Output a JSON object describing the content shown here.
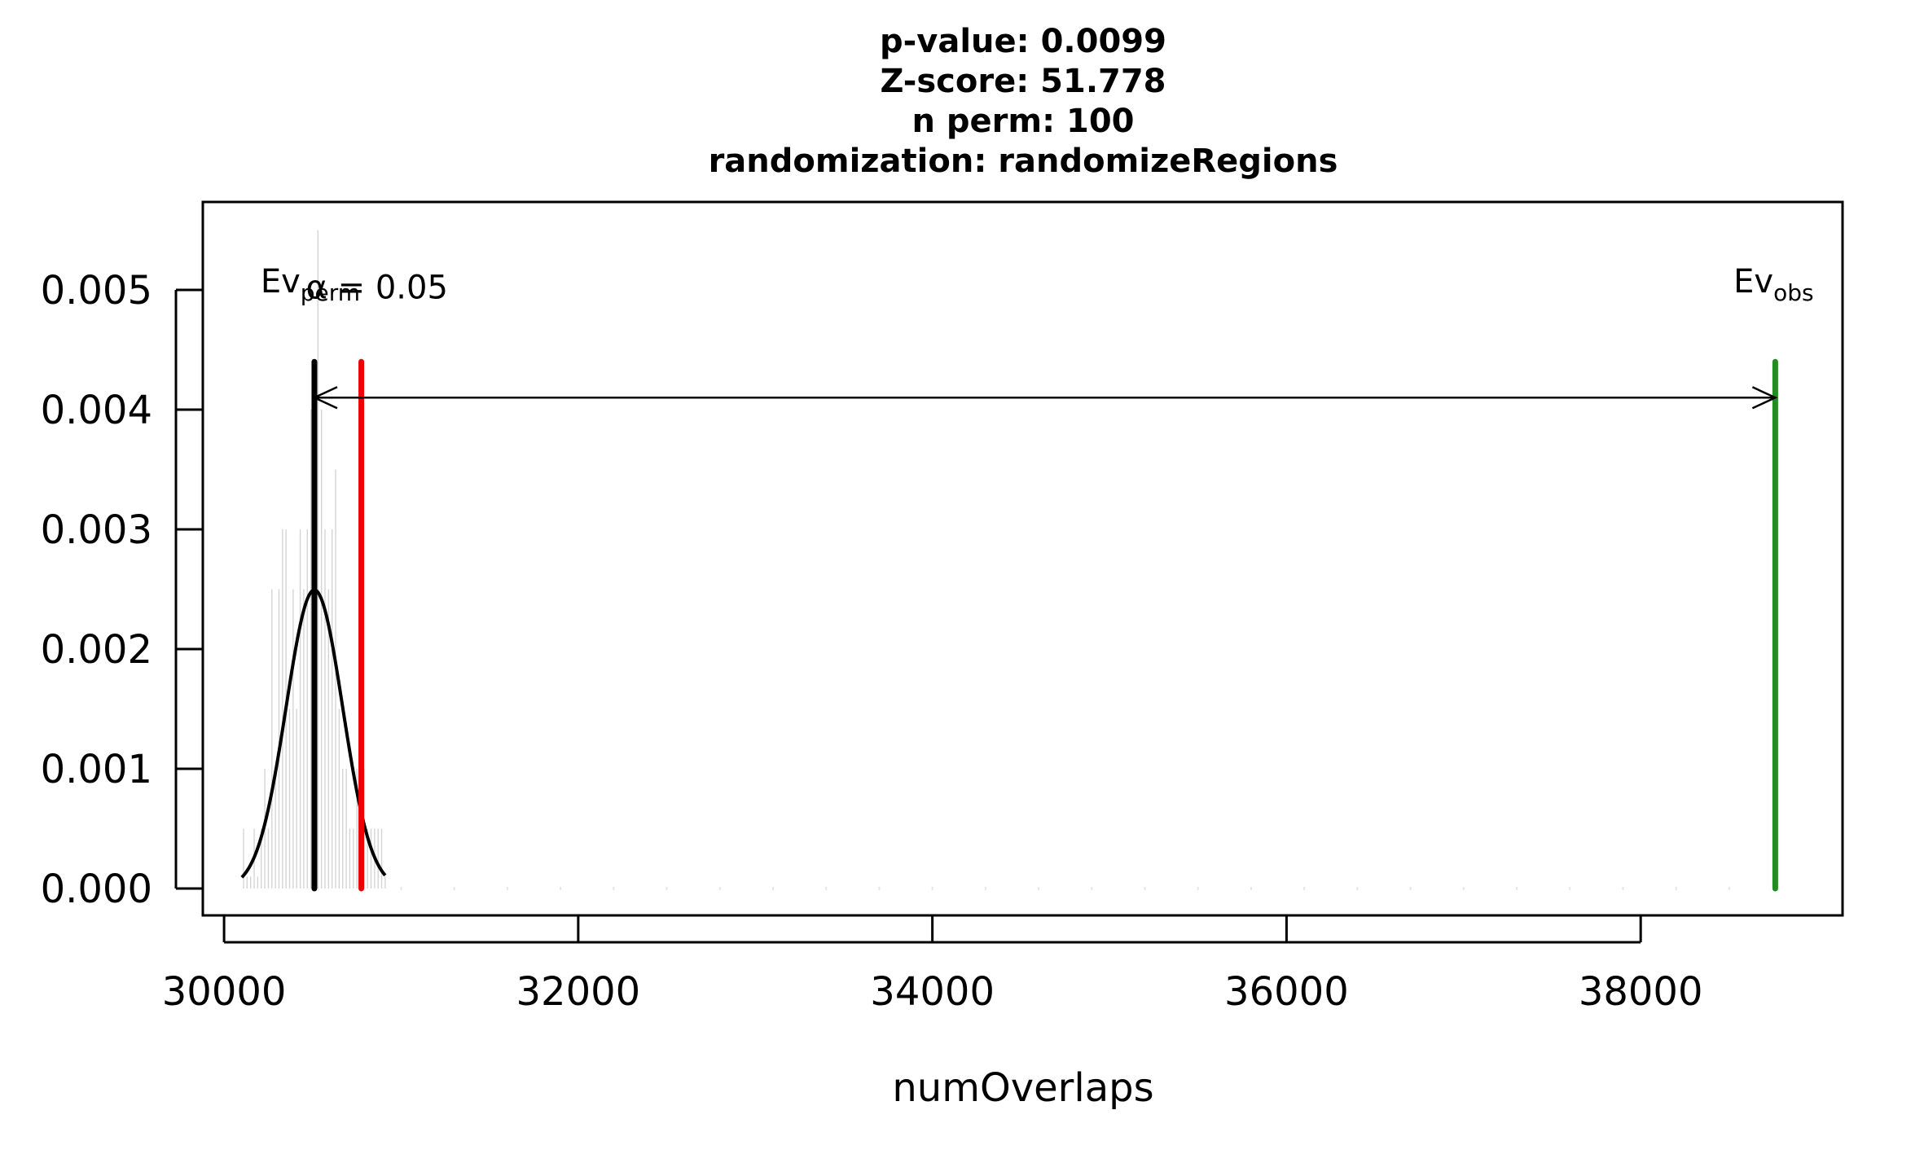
{
  "chart_data": {
    "type": "histogram",
    "title_lines": [
      "p-value:  0.0099",
      "Z-score:  51.778",
      "n perm:  100",
      "randomization:  randomizeRegions"
    ],
    "xlabel": "numOverlaps",
    "ylabel": "",
    "xlim": [
      29880,
      39140
    ],
    "ylim": [
      0,
      0.0056
    ],
    "x_ticks": [
      30000,
      32000,
      34000,
      36000,
      38000
    ],
    "y_ticks": [
      0.0,
      0.001,
      0.002,
      0.003,
      0.004,
      0.005
    ],
    "x_tick_labels": [
      "30000",
      "32000",
      "34000",
      "36000",
      "38000"
    ],
    "y_tick_labels": [
      "0.000",
      "0.001",
      "0.002",
      "0.003",
      "0.004",
      "0.005"
    ],
    "bin_width": 20,
    "histogram": {
      "bin_starts": [
        30100,
        30120,
        30140,
        30160,
        30180,
        30200,
        30220,
        30240,
        30260,
        30280,
        30300,
        30320,
        30340,
        30360,
        30380,
        30400,
        30420,
        30440,
        30460,
        30480,
        30500,
        30520,
        30540,
        30560,
        30580,
        30600,
        30620,
        30640,
        30660,
        30680,
        30700,
        30720,
        30740,
        30760,
        30780,
        30800,
        30820,
        30840,
        30860,
        30880,
        30900
      ],
      "density": [
        0.0005,
        0.0001,
        0.0001,
        0.0005,
        0.0001,
        0.0005,
        0.001,
        0.0005,
        0.0025,
        0.001,
        0.0025,
        0.003,
        0.003,
        0.0015,
        0.0025,
        0.0015,
        0.003,
        0.0025,
        0.003,
        0.004,
        0.003,
        0.0055,
        0.004,
        0.003,
        0.0025,
        0.003,
        0.0035,
        0.0015,
        0.001,
        0.001,
        0.0005,
        0.0005,
        0.001,
        0.0005,
        0.001,
        0.0005,
        0.0005,
        0.0005,
        0.0005,
        0.0005,
        0.0001
      ]
    },
    "normal_curve": {
      "mean": 30510,
      "sd": 160,
      "x_range": [
        30100,
        30910
      ]
    },
    "lines": [
      {
        "name": "perm-mean",
        "x": 30510,
        "y_top": 0.0044,
        "color": "#000000",
        "label_main": "Ev",
        "label_sub": "perm"
      },
      {
        "name": "alpha-threshold",
        "x": 30775,
        "y_top": 0.0044,
        "color": "#ee0000",
        "label_text": "α = 0.05"
      },
      {
        "name": "observed",
        "x": 38760,
        "y_top": 0.0044,
        "color": "#228b22",
        "label_main": "Ev",
        "label_sub": "obs"
      }
    ],
    "arrow": {
      "x_from": 30510,
      "x_to": 38760,
      "y": 0.0041
    },
    "grid": false,
    "legend": "none"
  }
}
